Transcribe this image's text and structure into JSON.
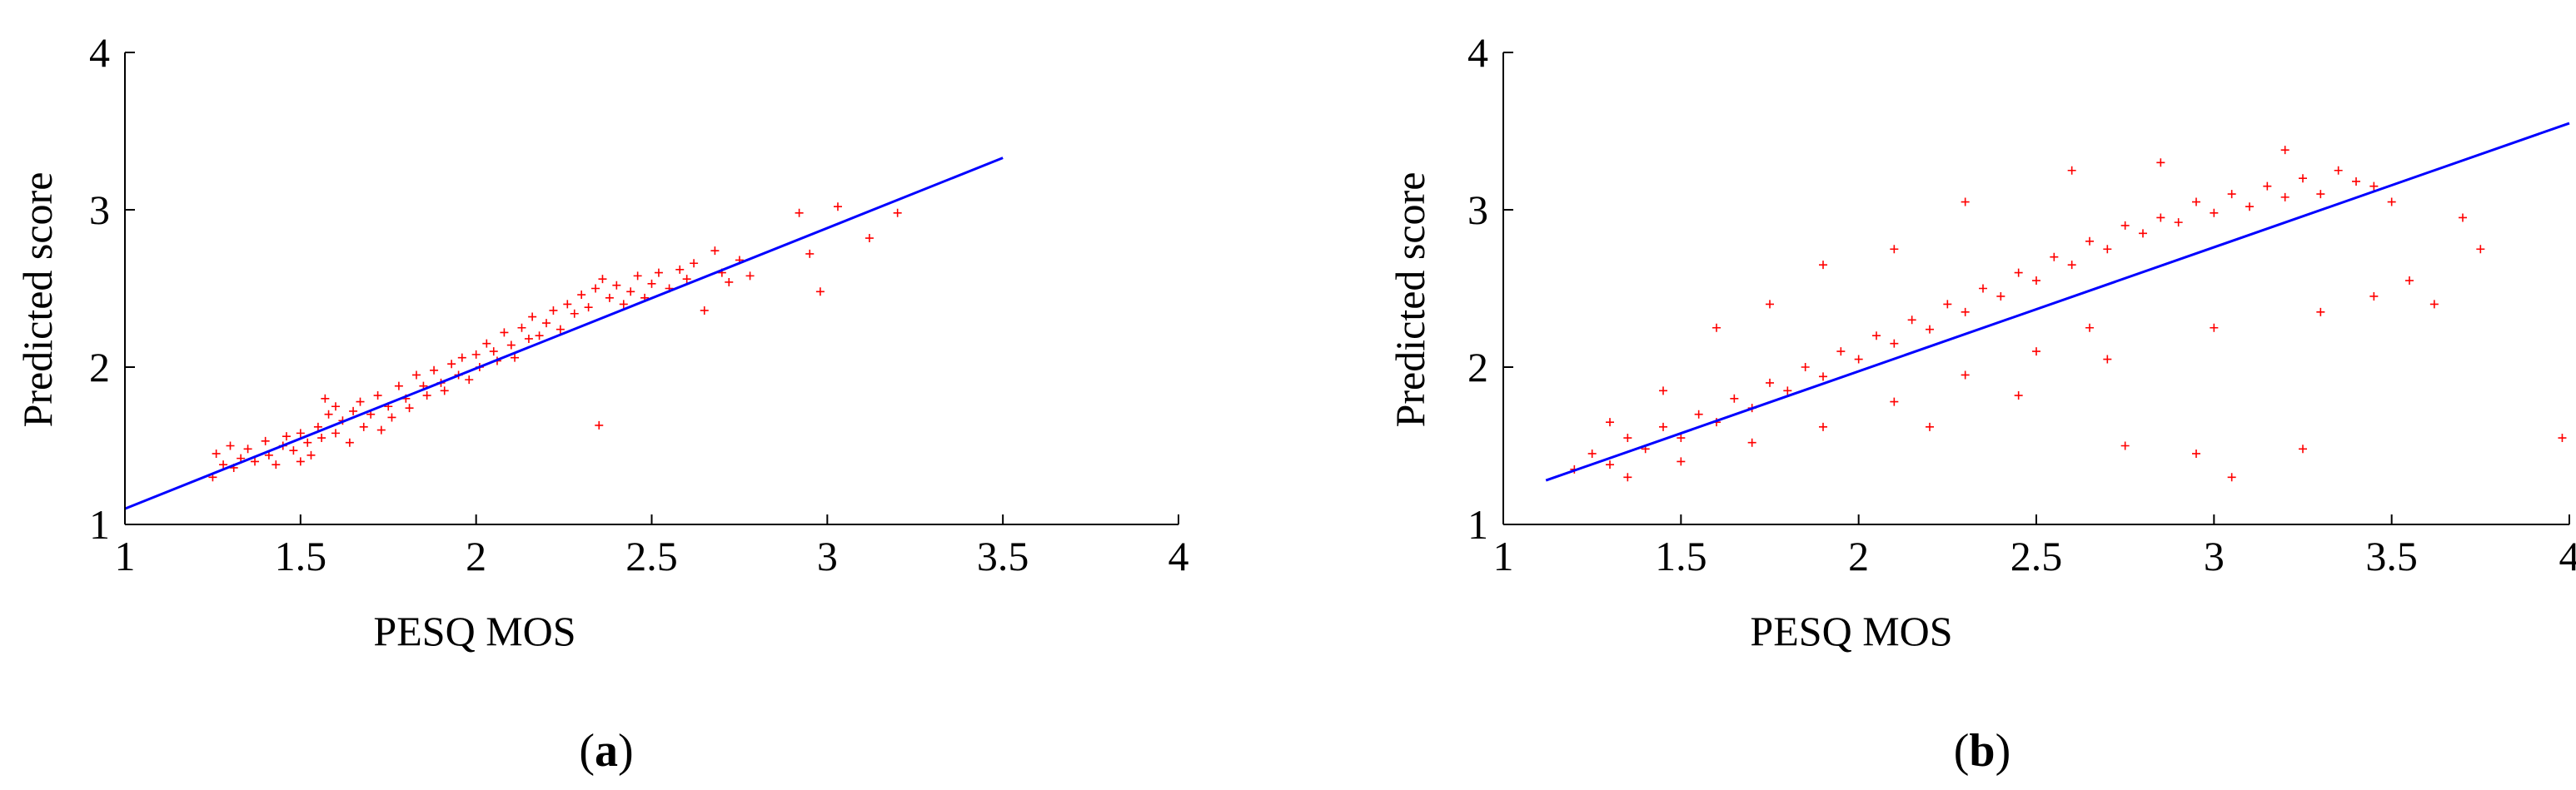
{
  "chart_data": [
    {
      "type": "scatter",
      "panel_label": "a",
      "xlabel": "PESQ MOS",
      "ylabel": "Predicted score",
      "xlim": [
        1,
        4
      ],
      "ylim": [
        1,
        4
      ],
      "xticks": [
        "1",
        "1.5",
        "2",
        "2.5",
        "3",
        "3.5",
        "4"
      ],
      "yticks": [
        "1",
        "2",
        "3",
        "4"
      ],
      "grid": false,
      "marker": "+",
      "series_color": "#ff0000",
      "fit_line_color": "#0000ff",
      "fit_line": {
        "x": [
          1.0,
          3.5
        ],
        "y": [
          1.1,
          3.33
        ]
      },
      "points": [
        [
          1.25,
          1.3
        ],
        [
          1.26,
          1.45
        ],
        [
          1.28,
          1.38
        ],
        [
          1.3,
          1.5
        ],
        [
          1.31,
          1.36
        ],
        [
          1.33,
          1.42
        ],
        [
          1.35,
          1.48
        ],
        [
          1.37,
          1.4
        ],
        [
          1.4,
          1.53
        ],
        [
          1.41,
          1.44
        ],
        [
          1.43,
          1.38
        ],
        [
          1.45,
          1.5
        ],
        [
          1.46,
          1.56
        ],
        [
          1.48,
          1.47
        ],
        [
          1.5,
          1.4
        ],
        [
          1.5,
          1.58
        ],
        [
          1.52,
          1.52
        ],
        [
          1.53,
          1.44
        ],
        [
          1.55,
          1.62
        ],
        [
          1.56,
          1.55
        ],
        [
          1.57,
          1.8
        ],
        [
          1.58,
          1.7
        ],
        [
          1.6,
          1.58
        ],
        [
          1.6,
          1.75
        ],
        [
          1.62,
          1.66
        ],
        [
          1.64,
          1.52
        ],
        [
          1.65,
          1.72
        ],
        [
          1.67,
          1.78
        ],
        [
          1.68,
          1.62
        ],
        [
          1.7,
          1.7
        ],
        [
          1.72,
          1.82
        ],
        [
          1.73,
          1.6
        ],
        [
          1.75,
          1.75
        ],
        [
          1.76,
          1.68
        ],
        [
          1.78,
          1.88
        ],
        [
          1.8,
          1.8
        ],
        [
          1.81,
          1.74
        ],
        [
          1.83,
          1.95
        ],
        [
          1.85,
          1.88
        ],
        [
          1.86,
          1.82
        ],
        [
          1.88,
          1.98
        ],
        [
          1.9,
          1.9
        ],
        [
          1.91,
          1.85
        ],
        [
          1.93,
          2.02
        ],
        [
          1.95,
          1.95
        ],
        [
          1.96,
          2.06
        ],
        [
          1.98,
          1.92
        ],
        [
          2.0,
          2.08
        ],
        [
          2.01,
          2.0
        ],
        [
          2.03,
          2.15
        ],
        [
          2.05,
          2.1
        ],
        [
          2.06,
          2.04
        ],
        [
          2.08,
          2.22
        ],
        [
          2.1,
          2.14
        ],
        [
          2.11,
          2.06
        ],
        [
          2.13,
          2.25
        ],
        [
          2.15,
          2.18
        ],
        [
          2.16,
          2.32
        ],
        [
          2.18,
          2.2
        ],
        [
          2.2,
          2.28
        ],
        [
          2.22,
          2.36
        ],
        [
          2.24,
          2.24
        ],
        [
          2.26,
          2.4
        ],
        [
          2.28,
          2.34
        ],
        [
          2.3,
          2.46
        ],
        [
          2.32,
          2.38
        ],
        [
          2.34,
          2.5
        ],
        [
          2.35,
          1.63
        ],
        [
          2.36,
          2.56
        ],
        [
          2.38,
          2.44
        ],
        [
          2.4,
          2.52
        ],
        [
          2.42,
          2.4
        ],
        [
          2.44,
          2.48
        ],
        [
          2.46,
          2.58
        ],
        [
          2.48,
          2.44
        ],
        [
          2.5,
          2.53
        ],
        [
          2.52,
          2.6
        ],
        [
          2.55,
          2.5
        ],
        [
          2.58,
          2.62
        ],
        [
          2.6,
          2.56
        ],
        [
          2.62,
          2.66
        ],
        [
          2.65,
          2.36
        ],
        [
          2.68,
          2.74
        ],
        [
          2.7,
          2.6
        ],
        [
          2.72,
          2.54
        ],
        [
          2.75,
          2.68
        ],
        [
          2.78,
          2.58
        ],
        [
          2.92,
          2.98
        ],
        [
          2.95,
          2.72
        ],
        [
          2.98,
          2.48
        ],
        [
          3.03,
          3.02
        ],
        [
          3.12,
          2.82
        ],
        [
          3.2,
          2.98
        ]
      ]
    },
    {
      "type": "scatter",
      "panel_label": "b",
      "xlabel": "PESQ MOS",
      "ylabel": "Predicted score",
      "xlim": [
        1,
        4
      ],
      "ylim": [
        1,
        4
      ],
      "xticks": [
        "1",
        "1.5",
        "2",
        "2.5",
        "3",
        "3.5",
        "4"
      ],
      "yticks": [
        "1",
        "2",
        "3",
        "4"
      ],
      "grid": false,
      "marker": "+",
      "series_color": "#ff0000",
      "fit_line_color": "#0000ff",
      "fit_line": {
        "x": [
          1.12,
          4.0
        ],
        "y": [
          1.28,
          3.55
        ]
      },
      "points": [
        [
          1.2,
          1.35
        ],
        [
          1.25,
          1.45
        ],
        [
          1.3,
          1.38
        ],
        [
          1.35,
          1.55
        ],
        [
          1.4,
          1.48
        ],
        [
          1.45,
          1.62
        ],
        [
          1.5,
          1.55
        ],
        [
          1.55,
          1.7
        ],
        [
          1.6,
          1.65
        ],
        [
          1.65,
          1.8
        ],
        [
          1.7,
          1.74
        ],
        [
          1.75,
          1.9
        ],
        [
          1.8,
          1.85
        ],
        [
          1.85,
          2.0
        ],
        [
          1.9,
          1.94
        ],
        [
          1.95,
          2.1
        ],
        [
          2.0,
          2.05
        ],
        [
          2.05,
          2.2
        ],
        [
          2.1,
          2.15
        ],
        [
          2.15,
          2.3
        ],
        [
          2.2,
          2.24
        ],
        [
          2.25,
          2.4
        ],
        [
          2.3,
          2.35
        ],
        [
          2.35,
          2.5
        ],
        [
          2.4,
          2.45
        ],
        [
          2.45,
          2.6
        ],
        [
          2.5,
          2.55
        ],
        [
          2.55,
          2.7
        ],
        [
          2.6,
          2.65
        ],
        [
          2.65,
          2.8
        ],
        [
          2.7,
          2.75
        ],
        [
          2.75,
          2.9
        ],
        [
          2.8,
          2.85
        ],
        [
          2.85,
          2.95
        ],
        [
          2.9,
          2.92
        ],
        [
          2.95,
          3.05
        ],
        [
          3.0,
          2.98
        ],
        [
          3.05,
          3.1
        ],
        [
          3.1,
          3.02
        ],
        [
          3.15,
          3.15
        ],
        [
          3.2,
          3.08
        ],
        [
          3.25,
          3.2
        ],
        [
          3.3,
          3.1
        ],
        [
          3.35,
          3.25
        ],
        [
          3.4,
          3.18
        ],
        [
          3.45,
          3.15
        ],
        [
          3.5,
          3.05
        ],
        [
          3.55,
          2.55
        ],
        [
          3.62,
          2.4
        ],
        [
          3.7,
          2.95
        ],
        [
          3.75,
          2.75
        ],
        [
          3.98,
          1.55
        ],
        [
          3.25,
          1.48
        ],
        [
          3.05,
          1.3
        ],
        [
          2.95,
          1.45
        ],
        [
          2.75,
          1.5
        ],
        [
          1.6,
          2.25
        ],
        [
          1.75,
          2.4
        ],
        [
          1.9,
          2.65
        ],
        [
          2.1,
          2.75
        ],
        [
          2.3,
          3.05
        ],
        [
          2.6,
          3.25
        ],
        [
          2.85,
          3.3
        ],
        [
          3.2,
          3.38
        ],
        [
          1.3,
          1.65
        ],
        [
          1.45,
          1.85
        ],
        [
          2.2,
          1.62
        ],
        [
          2.45,
          1.82
        ],
        [
          2.7,
          2.05
        ],
        [
          3.0,
          2.25
        ],
        [
          3.3,
          2.35
        ],
        [
          3.45,
          2.45
        ],
        [
          1.35,
          1.3
        ],
        [
          1.5,
          1.4
        ],
        [
          1.7,
          1.52
        ],
        [
          1.9,
          1.62
        ],
        [
          2.1,
          1.78
        ],
        [
          2.3,
          1.95
        ],
        [
          2.5,
          2.1
        ],
        [
          2.65,
          2.25
        ]
      ]
    }
  ]
}
